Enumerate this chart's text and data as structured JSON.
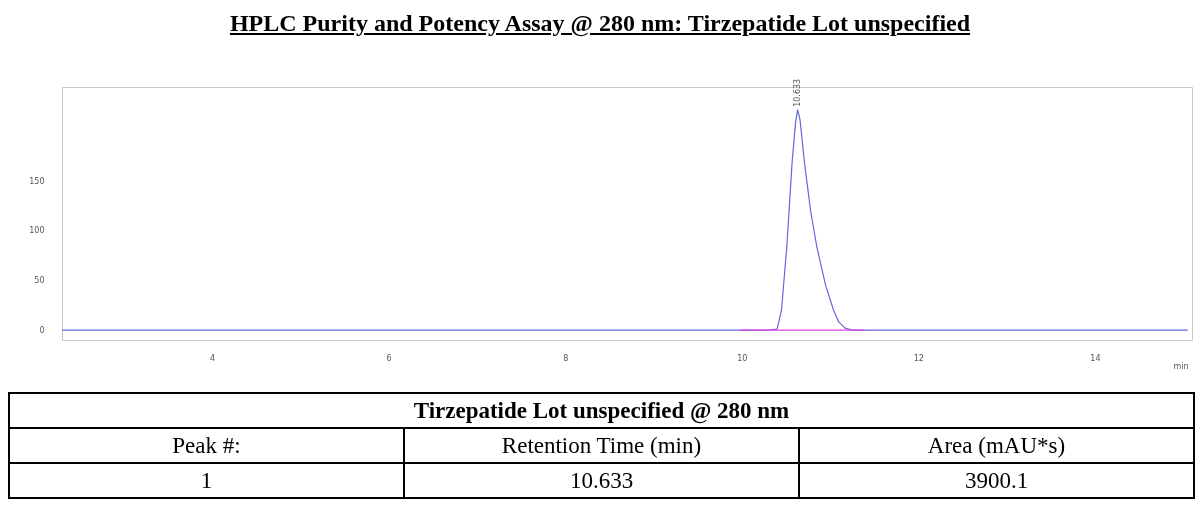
{
  "chart_data": {
    "type": "line",
    "title": "HPLC Purity and Potency Assay @ 280 nm: Tirzepatide Lot unspecified",
    "xlabel": "min",
    "xlim": [
      2.3,
      15.1
    ],
    "ylim": [
      -10,
      245
    ],
    "xticks": [
      4,
      6,
      8,
      10,
      12,
      14
    ],
    "yticks": [
      0,
      50,
      100,
      150
    ],
    "series": [
      {
        "color": "#6666dd",
        "x": [
          2.3,
          10.3,
          10.4,
          10.45,
          10.51,
          10.57,
          10.61,
          10.633,
          10.66,
          10.71,
          10.78,
          10.85,
          10.95,
          11.04,
          11.1,
          11.17,
          11.25,
          15.05
        ],
        "values": [
          0,
          0,
          1,
          20,
          84,
          169,
          210,
          222,
          212,
          169,
          120,
          84,
          45,
          20,
          8,
          2,
          0,
          0
        ]
      },
      {
        "color": "#e040e0",
        "x": [
          9.98,
          11.39
        ],
        "values": [
          0,
          0
        ]
      }
    ],
    "annotations": [
      {
        "text": "10.633",
        "x": 10.633,
        "y": 222
      },
      "Tirzepatide Lot unspecified @ 280 nm",
      "Peak #:",
      "Retention Time (min)",
      "Area (mAU*s)",
      "1",
      "10.633",
      "3900.1"
    ]
  }
}
